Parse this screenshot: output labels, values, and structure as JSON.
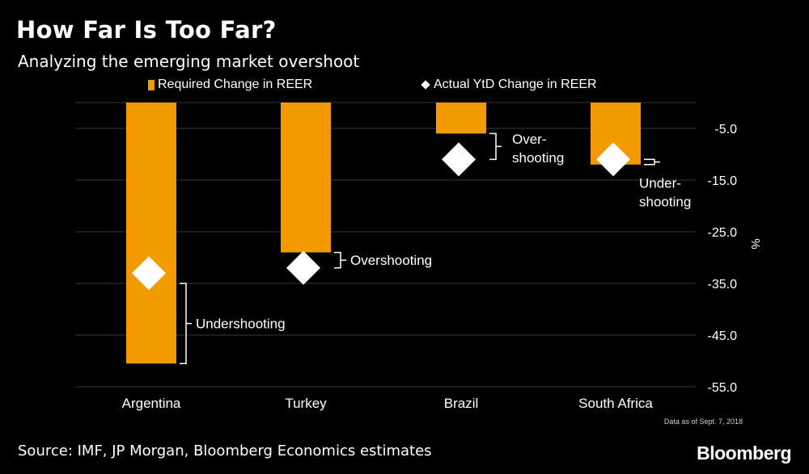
{
  "header": {
    "title": "How Far Is Too Far?",
    "subtitle": "Analyzing the emerging market overshoot"
  },
  "legend": {
    "bar_label": "Required Change in REER",
    "marker_label": "Actual YtD Change in REER"
  },
  "colors": {
    "bar": "#F29A00",
    "marker": "#FFFFFF",
    "grid": "#3a3a3a",
    "background": "#000000"
  },
  "chart_data": {
    "type": "bar",
    "title": "How Far Is Too Far?",
    "subtitle": "Analyzing the emerging market overshoot",
    "categories": [
      "Argentina",
      "Turkey",
      "Brazil",
      "South Africa"
    ],
    "series": [
      {
        "name": "Required Change in REER",
        "type": "bar",
        "values": [
          -50.5,
          -29,
          -6,
          -12
        ]
      },
      {
        "name": "Actual YtD Change in REER",
        "type": "marker",
        "values": [
          -33,
          -32,
          -11,
          -11
        ]
      }
    ],
    "annotations": [
      "Undershooting",
      "Overshooting",
      "Over-\nshooting",
      "Under-\nshooting"
    ],
    "ylabel": "%",
    "ylim": [
      -57,
      0
    ],
    "yticks": [
      -5,
      -15,
      -25,
      -35,
      -45,
      -55
    ],
    "ytick_labels": [
      "-5.0",
      "-15.0",
      "-25.0",
      "-35.0",
      "-45.0",
      "-55.0"
    ],
    "axis_position": "right",
    "grid": true
  },
  "footer": {
    "note": "Data as of Sept. 7, 2018",
    "source": "Source: IMF, JP Morgan, Bloomberg Economics estimates",
    "brand": "Bloomberg"
  }
}
